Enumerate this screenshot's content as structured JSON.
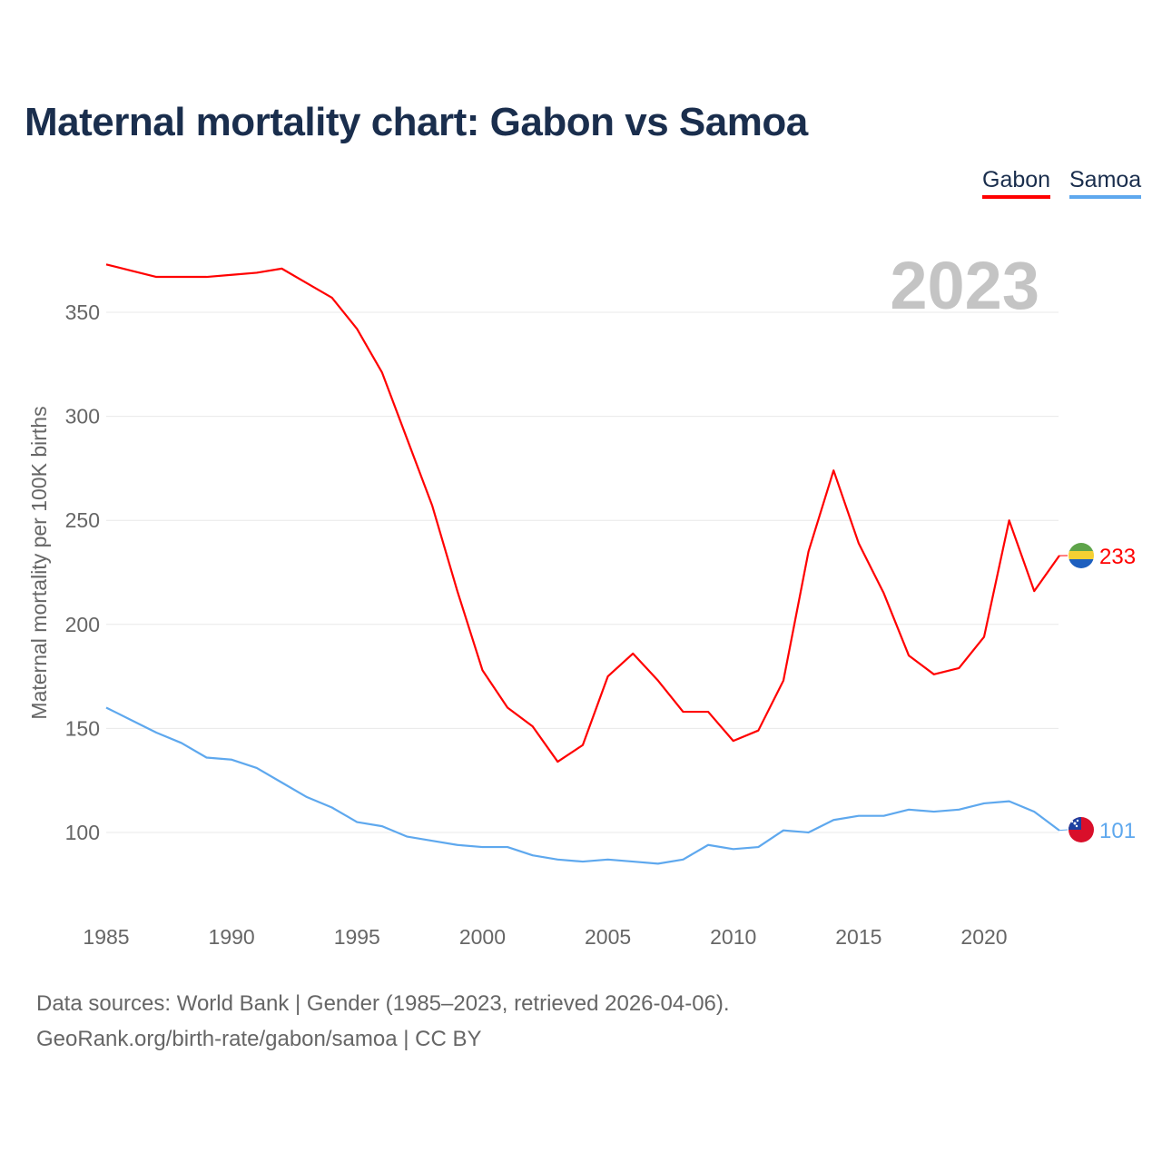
{
  "title": "Maternal mortality chart: Gabon vs Samoa",
  "legend": {
    "gabon": "Gabon",
    "samoa": "Samoa"
  },
  "footer": {
    "line1": "Data sources: World Bank | Gender (1985–2023, retrieved 2026-04-06).",
    "line2": "GeoRank.org/birth-rate/gabon/samoa | CC BY"
  },
  "chart_data": {
    "type": "line",
    "title": "Maternal mortality chart: Gabon vs Samoa",
    "xlabel": "",
    "ylabel": "Maternal mortality per 100K births",
    "year_label": "2023",
    "x": [
      1985,
      1986,
      1987,
      1988,
      1989,
      1990,
      1991,
      1992,
      1993,
      1994,
      1995,
      1996,
      1997,
      1998,
      1999,
      2000,
      2001,
      2002,
      2003,
      2004,
      2005,
      2006,
      2007,
      2008,
      2009,
      2010,
      2011,
      2012,
      2013,
      2014,
      2015,
      2016,
      2017,
      2018,
      2019,
      2020,
      2021,
      2022,
      2023
    ],
    "xticks": [
      "1985",
      "1990",
      "1995",
      "2000",
      "2005",
      "2010",
      "2015",
      "2020"
    ],
    "yticks": [
      "100",
      "150",
      "200",
      "250",
      "300",
      "350"
    ],
    "ylim": [
      60,
      390
    ],
    "xlim": [
      1985,
      2023
    ],
    "grid": true,
    "legend_position": "top-right",
    "series": [
      {
        "name": "Gabon",
        "color": "#ff0000",
        "end_label": "233",
        "values": [
          373,
          370,
          367,
          367,
          367,
          368,
          369,
          371,
          364,
          357,
          342,
          321,
          289,
          257,
          216,
          178,
          160,
          151,
          134,
          142,
          175,
          186,
          173,
          158,
          158,
          144,
          149,
          173,
          235,
          274,
          239,
          215,
          185,
          176,
          179,
          194,
          250,
          216,
          233
        ]
      },
      {
        "name": "Samoa",
        "color": "#5ea8ee",
        "end_label": "101",
        "values": [
          160,
          154,
          148,
          143,
          136,
          135,
          131,
          124,
          117,
          112,
          105,
          103,
          98,
          96,
          94,
          93,
          93,
          89,
          87,
          86,
          87,
          86,
          85,
          87,
          94,
          92,
          93,
          101,
          100,
          106,
          108,
          108,
          111,
          110,
          111,
          114,
          115,
          110,
          101
        ]
      }
    ]
  }
}
